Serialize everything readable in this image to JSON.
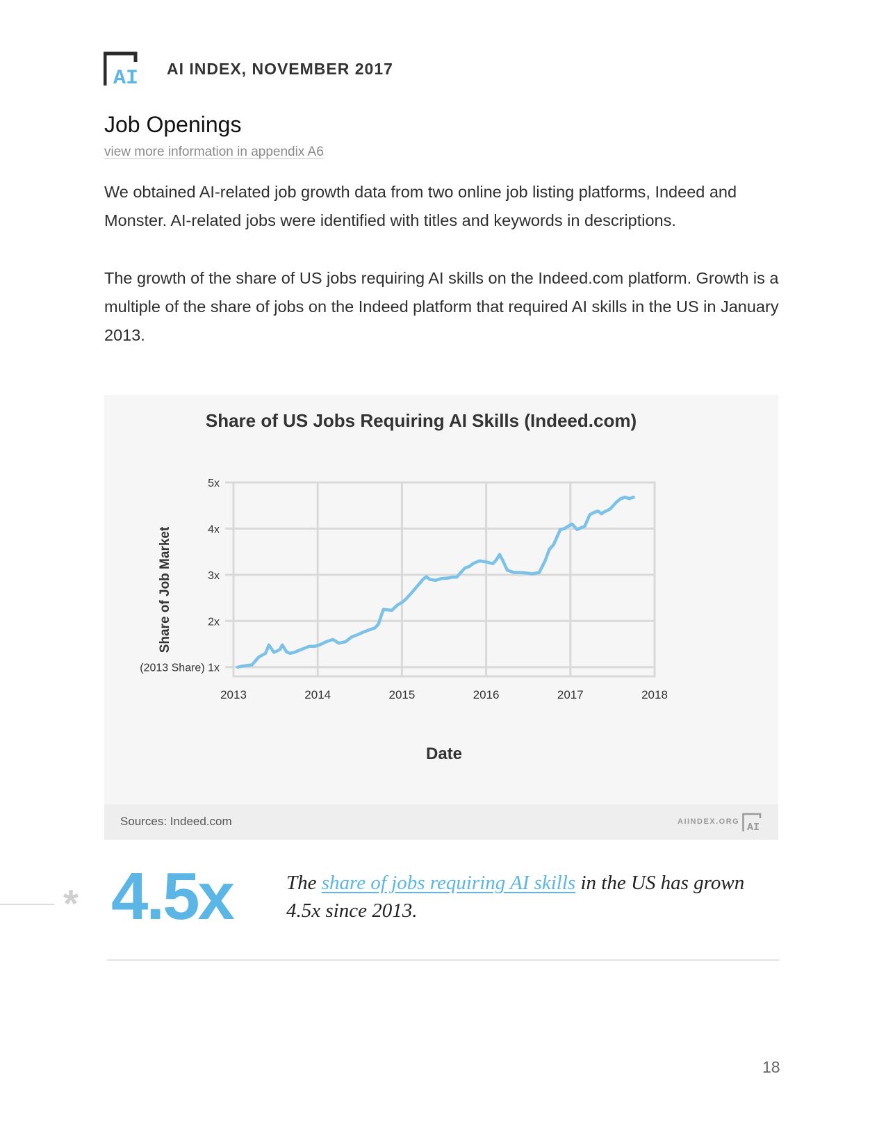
{
  "header": {
    "title": "AI INDEX, NOVEMBER 2017",
    "logo_text": "AI"
  },
  "section": {
    "title": "Job Openings",
    "appendix_link": "view more information in appendix A6"
  },
  "paragraphs": {
    "p1": "We obtained AI-related job growth data from two online job listing platforms, Indeed and Monster. AI-related jobs were identified with titles and keywords in descriptions.",
    "p2": "The growth of the share of US jobs requiring AI skills on the Indeed.com platform. Growth is a multiple of the share of jobs on the Indeed platform that required AI skills in the US in January 2013."
  },
  "card": {
    "sources": "Sources: Indeed.com",
    "site": "AIINDEX.ORG"
  },
  "callout": {
    "stat": "4.5x",
    "text_before": "The ",
    "link_text": "share of jobs requiring AI skills",
    "text_after": " in the US has grown 4.5x since 2013.",
    "asterisk": "*"
  },
  "page_number": "18",
  "colors": {
    "accent": "#5bb6e6",
    "line": "#7cc1e8",
    "grid": "#d9d9d9"
  },
  "chart_data": {
    "type": "line",
    "title": "Share of US Jobs Requiring AI Skills (Indeed.com)",
    "xlabel": "Date",
    "ylabel": "Share of Job Market",
    "xlim": [
      2013,
      2018
    ],
    "ylim": [
      0.8,
      5
    ],
    "x_ticks": [
      "2013",
      "2014",
      "2015",
      "2016",
      "2017",
      "2018"
    ],
    "y_ticks": [
      {
        "value": 1,
        "label": "(2013 Share) 1x"
      },
      {
        "value": 2,
        "label": "2x"
      },
      {
        "value": 3,
        "label": "3x"
      },
      {
        "value": 4,
        "label": "4x"
      },
      {
        "value": 5,
        "label": "5x"
      }
    ],
    "grid": true,
    "series": [
      {
        "x": [
          2013.05,
          2013.1,
          2013.22,
          2013.3,
          2013.38,
          2013.42,
          2013.48,
          2013.55,
          2013.58,
          2013.63,
          2013.67,
          2013.72,
          2013.8,
          2013.9,
          2013.96,
          2014.02,
          2014.1,
          2014.18,
          2014.25,
          2014.33,
          2014.4,
          2014.47,
          2014.53,
          2014.6,
          2014.68,
          2014.72,
          2014.78,
          2014.83,
          2014.88,
          2014.95,
          2015.0,
          2015.05,
          2015.12,
          2015.18,
          2015.25,
          2015.29,
          2015.33,
          2015.4,
          2015.47,
          2015.55,
          2015.6,
          2015.65,
          2015.7,
          2015.75,
          2015.8,
          2015.85,
          2015.92,
          2016.0,
          2016.08,
          2016.12,
          2016.16,
          2016.2,
          2016.25,
          2016.33,
          2016.4,
          2016.47,
          2016.55,
          2016.63,
          2016.7,
          2016.75,
          2016.8,
          2016.88,
          2016.93,
          2016.97,
          2017.02,
          2017.08,
          2017.13,
          2017.17,
          2017.23,
          2017.28,
          2017.33,
          2017.37,
          2017.4,
          2017.47,
          2017.55,
          2017.6,
          2017.65,
          2017.7,
          2017.75
        ],
        "values": [
          1.0,
          1.02,
          1.05,
          1.22,
          1.3,
          1.48,
          1.32,
          1.38,
          1.48,
          1.33,
          1.3,
          1.32,
          1.38,
          1.45,
          1.45,
          1.48,
          1.55,
          1.6,
          1.52,
          1.55,
          1.65,
          1.7,
          1.75,
          1.8,
          1.85,
          1.93,
          2.25,
          2.24,
          2.23,
          2.35,
          2.4,
          2.48,
          2.62,
          2.75,
          2.9,
          2.96,
          2.9,
          2.88,
          2.92,
          2.93,
          2.95,
          2.95,
          3.05,
          3.15,
          3.18,
          3.25,
          3.3,
          3.28,
          3.24,
          3.32,
          3.44,
          3.3,
          3.1,
          3.05,
          3.05,
          3.04,
          3.02,
          3.05,
          3.3,
          3.55,
          3.65,
          3.98,
          4.0,
          4.05,
          4.1,
          3.98,
          4.02,
          4.05,
          4.3,
          4.35,
          4.38,
          4.32,
          4.36,
          4.42,
          4.58,
          4.65,
          4.68,
          4.65,
          4.68
        ]
      }
    ]
  }
}
